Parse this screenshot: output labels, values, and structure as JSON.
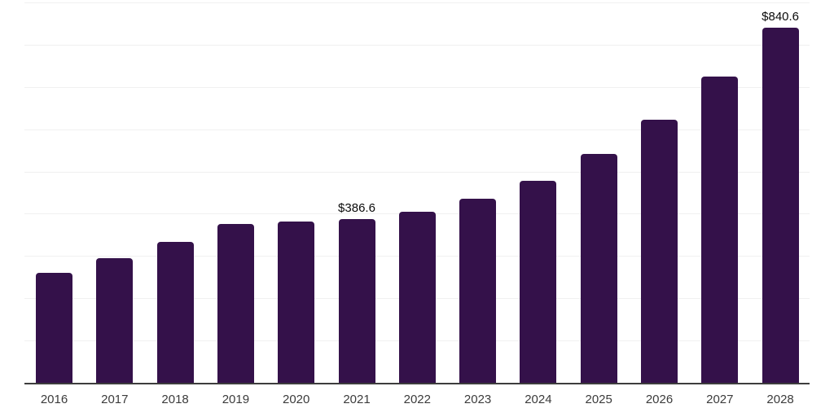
{
  "chart_data": {
    "type": "bar",
    "categories": [
      "2016",
      "2017",
      "2018",
      "2019",
      "2020",
      "2021",
      "2022",
      "2023",
      "2024",
      "2025",
      "2026",
      "2027",
      "2028"
    ],
    "values": [
      260,
      294,
      334,
      376,
      381,
      386.6,
      405,
      436,
      478,
      541,
      622,
      725,
      840.6
    ],
    "point_labels": [
      "",
      "",
      "",
      "",
      "",
      "$386.6",
      "",
      "",
      "",
      "",
      "",
      "",
      "$840.6"
    ],
    "ylim": [
      0,
      900
    ],
    "gridline_step": 100,
    "grid": "horizontal",
    "legend_position": "none",
    "bar_color": "#34114A",
    "axis_color": "#3d3d3d",
    "gridline_color": "#f0f0f0",
    "tick_label_color": "#3b3b3b",
    "value_label_color": "#0a0a0a"
  }
}
